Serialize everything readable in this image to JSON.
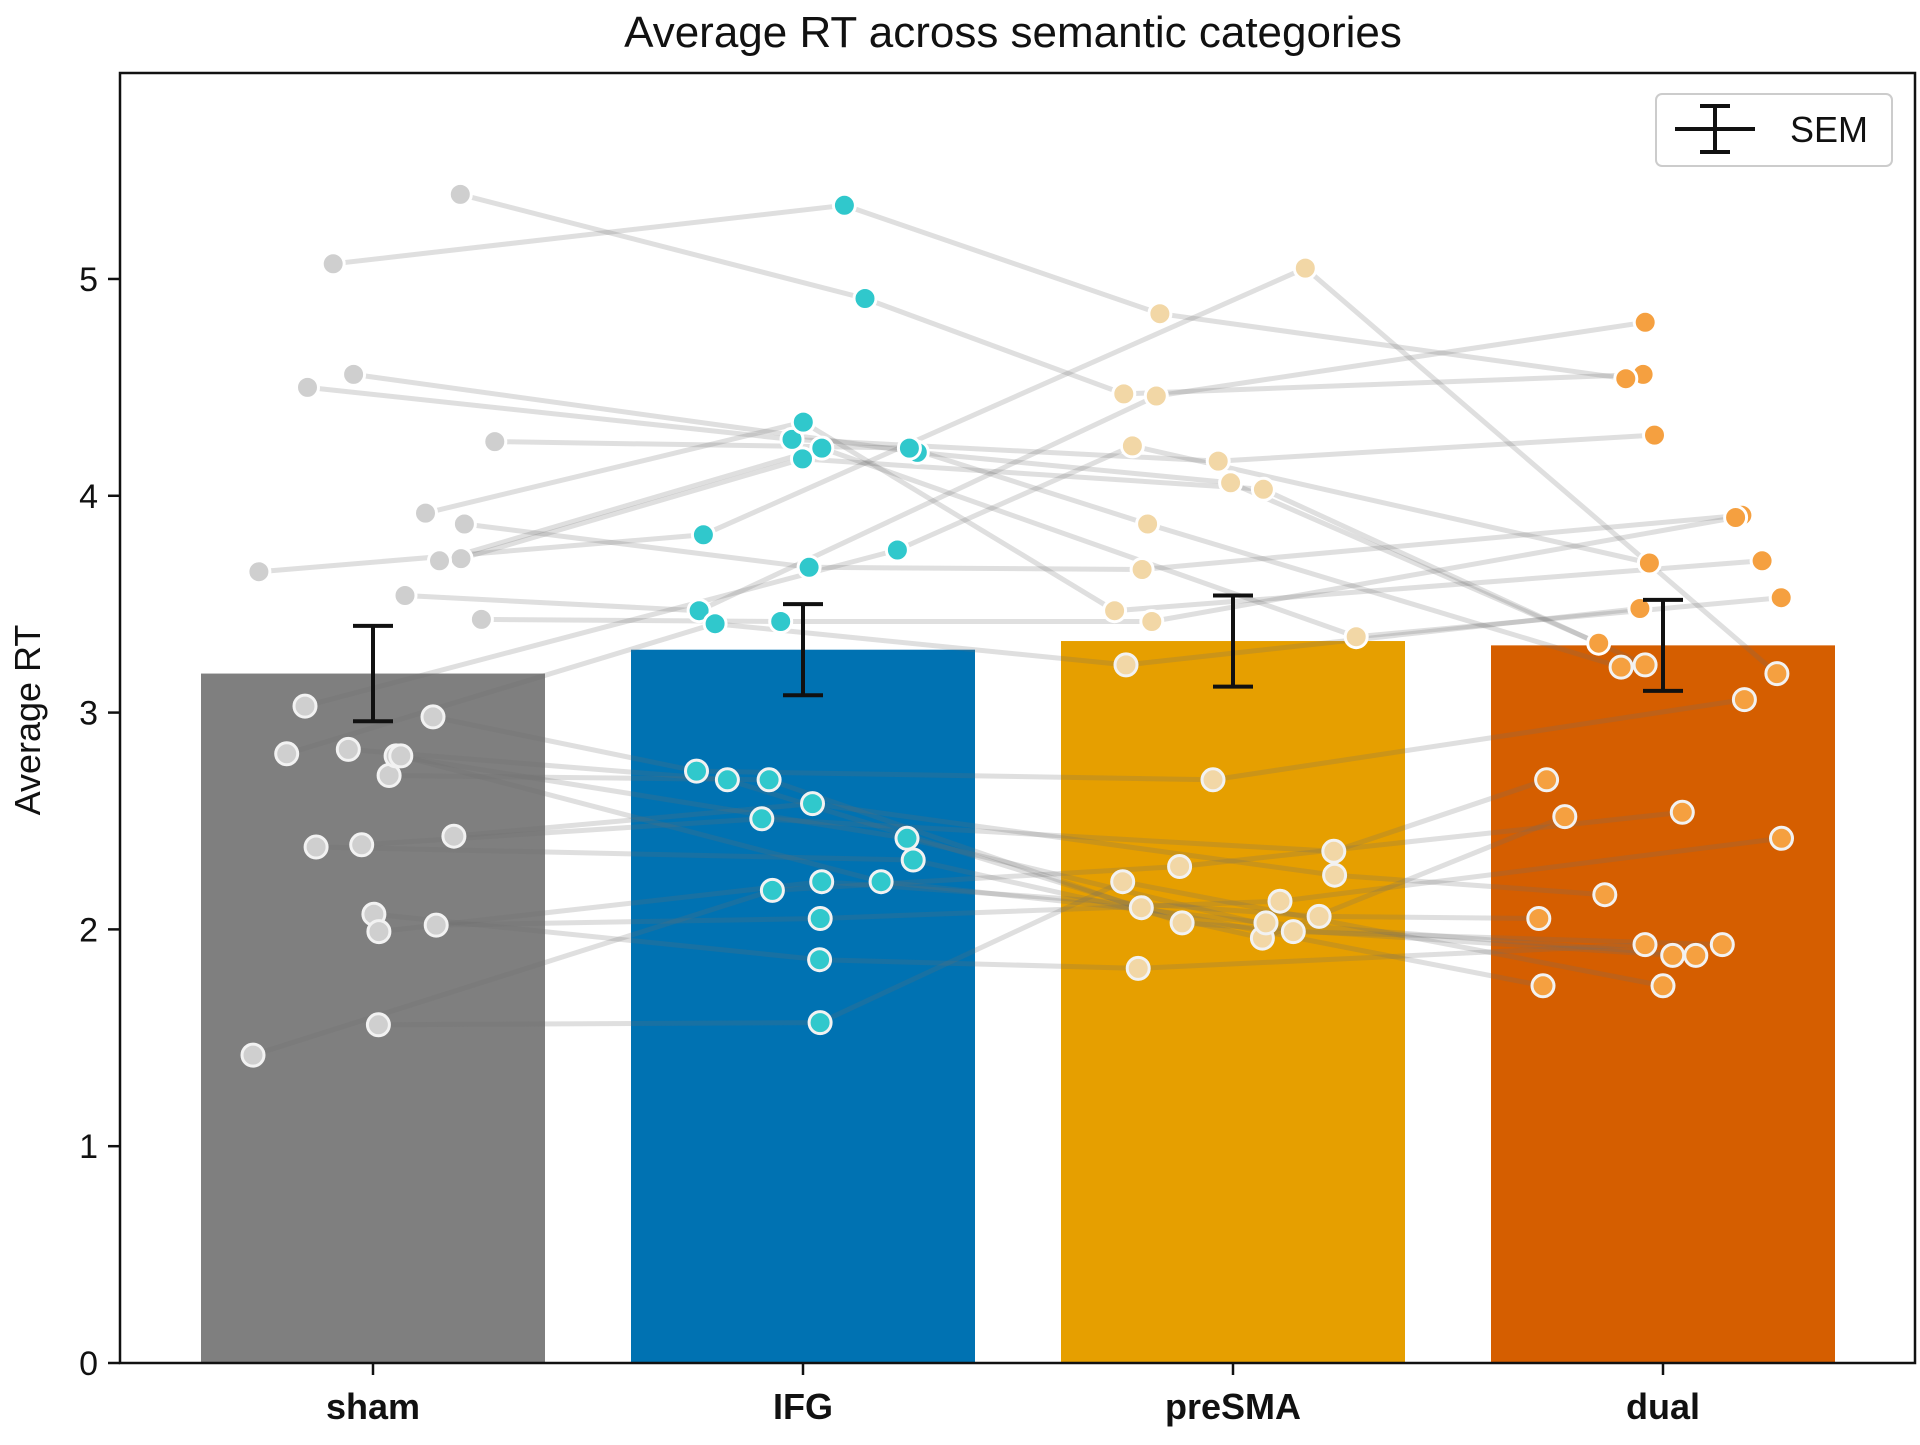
{
  "chart_data": {
    "type": "bar",
    "title": "Average RT across semantic categories",
    "xlabel": "",
    "ylabel": "Average RT",
    "ylim": [
      0,
      5.95
    ],
    "yticks": [
      "0",
      "1",
      "2",
      "3",
      "4",
      "5"
    ],
    "categories": [
      "sham",
      "IFG",
      "preSMA",
      "dual"
    ],
    "values": [
      3.18,
      3.29,
      3.33,
      3.31
    ],
    "sem": [
      0.22,
      0.21,
      0.21,
      0.21
    ],
    "colors": [
      "#7f7f7f",
      "#0072b2",
      "#e69f00",
      "#d55e00"
    ],
    "point_colors": [
      "#cfcfcf",
      "#30c8cc",
      "#f2d7a6",
      "#f5a040"
    ],
    "legend": {
      "label": "SEM",
      "position": "top-right"
    },
    "grid": false,
    "subjects": [
      [
        2.98,
        2.73,
        2.69,
        3.06
      ],
      [
        2.71,
        2.69,
        2.03,
        1.88
      ],
      [
        2.39,
        2.51,
        2.36,
        2.69
      ],
      [
        2.38,
        2.32,
        1.96,
        2.52
      ],
      [
        2.43,
        2.58,
        2.25,
        2.16
      ],
      [
        2.02,
        2.05,
        2.13,
        2.42
      ],
      [
        2.07,
        1.86,
        1.82,
        1.93
      ],
      [
        1.99,
        2.22,
        2.06,
        2.05
      ],
      [
        1.56,
        1.57,
        2.22,
        1.74
      ],
      [
        1.42,
        2.18,
        2.29,
        2.54
      ],
      [
        2.8,
        2.42,
        1.99,
        1.93
      ],
      [
        2.8,
        2.22,
        2.03,
        1.88
      ],
      [
        2.83,
        2.69,
        2.1,
        1.74
      ],
      [
        5.39,
        4.91,
        4.47,
        4.56
      ],
      [
        5.07,
        5.34,
        4.84,
        4.54
      ],
      [
        4.56,
        4.2,
        4.06,
        3.32
      ],
      [
        4.5,
        4.26,
        4.16,
        4.28
      ],
      [
        4.25,
        4.22,
        3.87,
        3.21
      ],
      [
        3.92,
        4.34,
        3.47,
        3.7
      ],
      [
        3.87,
        3.67,
        3.66,
        3.91
      ],
      [
        3.71,
        4.17,
        4.03,
        3.22
      ],
      [
        3.65,
        3.82,
        5.05,
        3.18
      ],
      [
        3.54,
        3.47,
        4.46,
        4.8
      ],
      [
        3.43,
        3.42,
        3.42,
        3.9
      ],
      [
        3.03,
        3.75,
        4.23,
        3.69
      ],
      [
        3.7,
        4.22,
        3.35,
        3.53
      ],
      [
        2.81,
        3.41,
        3.22,
        3.48
      ]
    ]
  }
}
